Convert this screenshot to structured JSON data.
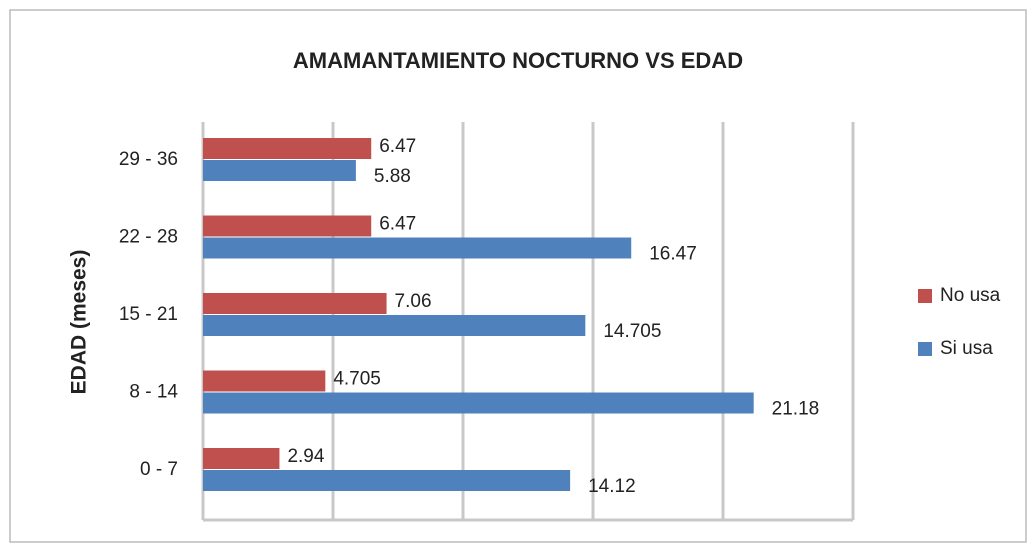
{
  "chart_data": {
    "type": "bar",
    "orientation": "horizontal",
    "title": "AMAMANTAMIENTO NOCTURNO VS EDAD",
    "y_label": "EDAD (meses)",
    "categories": [
      "0 - 7",
      "8 - 14",
      "15 - 21",
      "22 - 28",
      "29 - 36"
    ],
    "series": [
      {
        "name": "No usa",
        "color": "#c0504d",
        "values": [
          2.94,
          4.705,
          7.06,
          6.47,
          6.47
        ]
      },
      {
        "name": "Si usa",
        "color": "#4f81bd",
        "values": [
          14.12,
          21.18,
          14.705,
          16.47,
          5.88
        ]
      }
    ],
    "xlim": [
      0,
      25
    ],
    "xticks": [
      0,
      5,
      10,
      15,
      20,
      25
    ],
    "grid": true,
    "legend": "right"
  }
}
